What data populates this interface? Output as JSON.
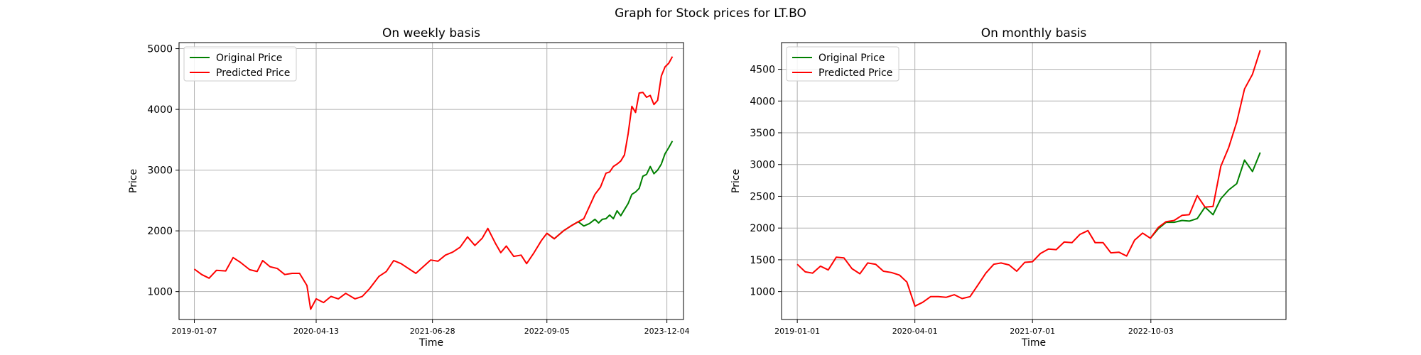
{
  "suptitle": "Graph for Stock prices for LT.BO",
  "colors": {
    "original": "#008000",
    "predicted": "#ff0000"
  },
  "chart_data": [
    {
      "type": "line",
      "title": "On weekly basis",
      "xlabel": "Time",
      "ylabel": "Price",
      "grid": true,
      "legend_position": "top-left",
      "xlim": [
        "2018-11-10",
        "2024-02-05"
      ],
      "ylim": [
        540,
        5100
      ],
      "yticks": [
        1000,
        2000,
        3000,
        4000,
        5000
      ],
      "xticks": [
        "2019-01-07",
        "2020-04-13",
        "2021-06-28",
        "2022-09-05",
        "2023-12-04"
      ],
      "series": [
        {
          "name": "Original Price",
          "color": "#008000",
          "points": [
            [
              "2022-09-05",
              1960
            ],
            [
              "2022-10-03",
              1870
            ],
            [
              "2022-11-07",
              2000
            ],
            [
              "2022-12-05",
              2080
            ],
            [
              "2023-01-02",
              2150
            ],
            [
              "2023-01-23",
              2080
            ],
            [
              "2023-02-13",
              2120
            ],
            [
              "2023-03-06",
              2190
            ],
            [
              "2023-03-20",
              2130
            ],
            [
              "2023-04-03",
              2190
            ],
            [
              "2023-04-17",
              2200
            ],
            [
              "2023-05-01",
              2260
            ],
            [
              "2023-05-15",
              2200
            ],
            [
              "2023-05-29",
              2330
            ],
            [
              "2023-06-12",
              2250
            ],
            [
              "2023-06-26",
              2350
            ],
            [
              "2023-07-10",
              2450
            ],
            [
              "2023-07-24",
              2600
            ],
            [
              "2023-08-07",
              2640
            ],
            [
              "2023-08-21",
              2700
            ],
            [
              "2023-09-04",
              2900
            ],
            [
              "2023-09-18",
              2930
            ],
            [
              "2023-10-02",
              3060
            ],
            [
              "2023-10-16",
              2940
            ],
            [
              "2023-10-30",
              3000
            ],
            [
              "2023-11-13",
              3100
            ],
            [
              "2023-11-27",
              3270
            ],
            [
              "2023-12-11",
              3370
            ],
            [
              "2023-12-25",
              3480
            ]
          ]
        },
        {
          "name": "Predicted Price",
          "color": "#ff0000",
          "points": [
            [
              "2019-01-07",
              1370
            ],
            [
              "2019-02-04",
              1280
            ],
            [
              "2019-03-04",
              1220
            ],
            [
              "2019-04-01",
              1350
            ],
            [
              "2019-05-06",
              1340
            ],
            [
              "2019-06-03",
              1560
            ],
            [
              "2019-07-01",
              1480
            ],
            [
              "2019-08-05",
              1360
            ],
            [
              "2019-09-02",
              1330
            ],
            [
              "2019-09-23",
              1510
            ],
            [
              "2019-10-21",
              1410
            ],
            [
              "2019-11-18",
              1380
            ],
            [
              "2019-12-16",
              1280
            ],
            [
              "2020-01-13",
              1300
            ],
            [
              "2020-02-10",
              1300
            ],
            [
              "2020-03-09",
              1100
            ],
            [
              "2020-03-23",
              710
            ],
            [
              "2020-04-13",
              880
            ],
            [
              "2020-05-11",
              820
            ],
            [
              "2020-06-08",
              920
            ],
            [
              "2020-07-06",
              880
            ],
            [
              "2020-08-03",
              970
            ],
            [
              "2020-09-07",
              880
            ],
            [
              "2020-10-05",
              920
            ],
            [
              "2020-11-02",
              1050
            ],
            [
              "2020-12-07",
              1250
            ],
            [
              "2021-01-04",
              1330
            ],
            [
              "2021-02-01",
              1510
            ],
            [
              "2021-03-01",
              1460
            ],
            [
              "2021-03-29",
              1380
            ],
            [
              "2021-04-26",
              1300
            ],
            [
              "2021-05-24",
              1410
            ],
            [
              "2021-06-21",
              1520
            ],
            [
              "2021-07-19",
              1500
            ],
            [
              "2021-08-16",
              1600
            ],
            [
              "2021-09-13",
              1650
            ],
            [
              "2021-10-11",
              1730
            ],
            [
              "2021-11-08",
              1900
            ],
            [
              "2021-12-06",
              1760
            ],
            [
              "2022-01-03",
              1880
            ],
            [
              "2022-01-24",
              2040
            ],
            [
              "2022-02-21",
              1800
            ],
            [
              "2022-03-14",
              1640
            ],
            [
              "2022-04-04",
              1750
            ],
            [
              "2022-05-02",
              1580
            ],
            [
              "2022-05-30",
              1600
            ],
            [
              "2022-06-20",
              1460
            ],
            [
              "2022-07-18",
              1640
            ],
            [
              "2022-08-15",
              1840
            ],
            [
              "2022-09-05",
              1960
            ],
            [
              "2022-10-03",
              1870
            ],
            [
              "2022-11-07",
              2000
            ],
            [
              "2022-12-05",
              2080
            ],
            [
              "2023-01-02",
              2150
            ],
            [
              "2023-01-23",
              2200
            ],
            [
              "2023-02-13",
              2400
            ],
            [
              "2023-03-06",
              2600
            ],
            [
              "2023-03-27",
              2720
            ],
            [
              "2023-04-17",
              2950
            ],
            [
              "2023-05-01",
              2970
            ],
            [
              "2023-05-15",
              3060
            ],
            [
              "2023-05-29",
              3100
            ],
            [
              "2023-06-12",
              3150
            ],
            [
              "2023-06-26",
              3250
            ],
            [
              "2023-07-10",
              3600
            ],
            [
              "2023-07-24",
              4050
            ],
            [
              "2023-08-07",
              3950
            ],
            [
              "2023-08-21",
              4270
            ],
            [
              "2023-09-04",
              4280
            ],
            [
              "2023-09-18",
              4200
            ],
            [
              "2023-10-02",
              4230
            ],
            [
              "2023-10-16",
              4080
            ],
            [
              "2023-10-30",
              4150
            ],
            [
              "2023-11-13",
              4550
            ],
            [
              "2023-11-27",
              4700
            ],
            [
              "2023-12-11",
              4760
            ],
            [
              "2023-12-25",
              4870
            ]
          ]
        }
      ]
    },
    {
      "type": "line",
      "title": "On monthly basis",
      "xlabel": "Time",
      "ylabel": "Price",
      "grid": true,
      "legend_position": "top-left",
      "xlim": [
        "2018-11-01",
        "2024-03-10"
      ],
      "ylim": [
        560,
        4920
      ],
      "yticks": [
        1000,
        1500,
        2000,
        2500,
        3000,
        3500,
        4000,
        4500
      ],
      "xticks": [
        "2019-01-01",
        "2020-04-01",
        "2021-07-01",
        "2022-10-03"
      ],
      "series": [
        {
          "name": "Original Price",
          "color": "#008000",
          "points": [
            [
              "2022-10-01",
              1840
            ],
            [
              "2022-11-01",
              1990
            ],
            [
              "2022-12-01",
              2090
            ],
            [
              "2023-01-01",
              2090
            ],
            [
              "2023-02-01",
              2120
            ],
            [
              "2023-03-01",
              2110
            ],
            [
              "2023-04-01",
              2150
            ],
            [
              "2023-05-01",
              2330
            ],
            [
              "2023-06-01",
              2210
            ],
            [
              "2023-07-01",
              2460
            ],
            [
              "2023-08-01",
              2600
            ],
            [
              "2023-09-01",
              2700
            ],
            [
              "2023-10-01",
              3070
            ],
            [
              "2023-11-01",
              2890
            ],
            [
              "2023-12-01",
              3190
            ]
          ]
        },
        {
          "name": "Predicted Price",
          "color": "#ff0000",
          "points": [
            [
              "2019-01-01",
              1430
            ],
            [
              "2019-02-01",
              1310
            ],
            [
              "2019-03-01",
              1290
            ],
            [
              "2019-04-01",
              1400
            ],
            [
              "2019-05-01",
              1340
            ],
            [
              "2019-06-01",
              1540
            ],
            [
              "2019-07-01",
              1530
            ],
            [
              "2019-08-01",
              1360
            ],
            [
              "2019-09-01",
              1280
            ],
            [
              "2019-10-01",
              1450
            ],
            [
              "2019-11-01",
              1430
            ],
            [
              "2019-12-01",
              1320
            ],
            [
              "2020-01-01",
              1300
            ],
            [
              "2020-02-01",
              1260
            ],
            [
              "2020-03-01",
              1150
            ],
            [
              "2020-04-01",
              770
            ],
            [
              "2020-05-01",
              830
            ],
            [
              "2020-06-01",
              920
            ],
            [
              "2020-07-01",
              920
            ],
            [
              "2020-08-01",
              910
            ],
            [
              "2020-09-01",
              950
            ],
            [
              "2020-10-01",
              890
            ],
            [
              "2020-11-01",
              920
            ],
            [
              "2020-12-01",
              1100
            ],
            [
              "2021-01-01",
              1290
            ],
            [
              "2021-02-01",
              1430
            ],
            [
              "2021-03-01",
              1450
            ],
            [
              "2021-04-01",
              1420
            ],
            [
              "2021-05-01",
              1320
            ],
            [
              "2021-06-01",
              1460
            ],
            [
              "2021-07-01",
              1470
            ],
            [
              "2021-08-01",
              1600
            ],
            [
              "2021-09-01",
              1670
            ],
            [
              "2021-10-01",
              1660
            ],
            [
              "2021-11-01",
              1780
            ],
            [
              "2021-12-01",
              1770
            ],
            [
              "2022-01-01",
              1900
            ],
            [
              "2022-02-01",
              1960
            ],
            [
              "2022-03-01",
              1770
            ],
            [
              "2022-04-01",
              1770
            ],
            [
              "2022-05-01",
              1610
            ],
            [
              "2022-06-01",
              1620
            ],
            [
              "2022-07-01",
              1560
            ],
            [
              "2022-08-01",
              1810
            ],
            [
              "2022-09-01",
              1920
            ],
            [
              "2022-10-01",
              1840
            ],
            [
              "2022-11-01",
              2010
            ],
            [
              "2022-12-01",
              2100
            ],
            [
              "2023-01-01",
              2120
            ],
            [
              "2023-02-01",
              2200
            ],
            [
              "2023-03-01",
              2210
            ],
            [
              "2023-04-01",
              2510
            ],
            [
              "2023-05-01",
              2330
            ],
            [
              "2023-06-01",
              2340
            ],
            [
              "2023-07-01",
              2970
            ],
            [
              "2023-08-01",
              3270
            ],
            [
              "2023-09-01",
              3670
            ],
            [
              "2023-10-01",
              4190
            ],
            [
              "2023-11-01",
              4420
            ],
            [
              "2023-12-01",
              4800
            ]
          ]
        }
      ]
    }
  ]
}
